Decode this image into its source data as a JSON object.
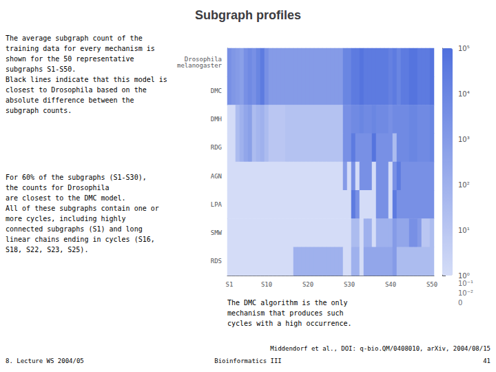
{
  "chart_data": {
    "type": "heatmap",
    "title": "Subgraph profiles",
    "categories": [
      "S1",
      null,
      null,
      null,
      null,
      null,
      null,
      null,
      null,
      "S10",
      null,
      null,
      null,
      null,
      null,
      null,
      null,
      null,
      null,
      "S20",
      null,
      null,
      null,
      null,
      null,
      null,
      null,
      null,
      null,
      "S30",
      null,
      null,
      null,
      null,
      null,
      null,
      null,
      null,
      null,
      "S40",
      null,
      null,
      null,
      null,
      null,
      null,
      null,
      null,
      null,
      "S50"
    ],
    "y_categories": [
      "Drosophila\nmelanogaster",
      "DMC",
      "DMH",
      "RDG",
      "AGN",
      "LPA",
      "SMW",
      "RDS"
    ],
    "values": [
      [
        3.5,
        3.2,
        3.0,
        2.8,
        3.5,
        3.8,
        3.5,
        4.0,
        4.5,
        3.5,
        3.0,
        3.0,
        3.0,
        3.0,
        3.0,
        3.0,
        3.0,
        3.0,
        3.0,
        3.0,
        3.0,
        3.0,
        3.0,
        3.0,
        3.0,
        3.0,
        3.0,
        3.0,
        4.0,
        4.0,
        4.5,
        4.5,
        4.8,
        4.5,
        4.5,
        4.5,
        4.5,
        4.5,
        4.5,
        4.2,
        4.5,
        4.0,
        4.5,
        4.5,
        4.8,
        4.8,
        4.5,
        4.5,
        4.5,
        4.8
      ],
      [
        3.5,
        3.2,
        3.0,
        2.8,
        3.5,
        3.8,
        3.5,
        4.0,
        4.5,
        3.5,
        3.0,
        3.0,
        3.0,
        3.0,
        3.0,
        3.0,
        3.0,
        3.0,
        3.0,
        3.0,
        3.0,
        3.0,
        3.0,
        3.0,
        3.0,
        3.0,
        3.0,
        3.0,
        4.0,
        4.0,
        4.5,
        4.5,
        4.8,
        4.5,
        4.5,
        4.5,
        4.5,
        4.5,
        4.5,
        4.2,
        4.5,
        4.0,
        4.5,
        4.5,
        4.8,
        4.8,
        4.5,
        4.5,
        4.5,
        4.8
      ],
      [
        0.0,
        0.0,
        1.5,
        2.0,
        2.5,
        2.8,
        1.5,
        1.8,
        2.0,
        1.5,
        1.0,
        1.0,
        1.0,
        1.0,
        1.2,
        1.2,
        1.2,
        1.2,
        1.2,
        1.2,
        1.2,
        1.2,
        1.2,
        1.2,
        1.2,
        1.2,
        1.2,
        1.2,
        3.5,
        3.5,
        3.8,
        3.8,
        4.0,
        3.8,
        3.8,
        4.0,
        3.8,
        3.8,
        3.8,
        3.5,
        3.8,
        3.8,
        3.8,
        3.8,
        4.0,
        4.0,
        3.8,
        3.8,
        3.8,
        4.0
      ],
      [
        0.0,
        0.0,
        1.5,
        2.0,
        2.5,
        2.8,
        1.5,
        1.8,
        2.0,
        1.5,
        1.0,
        1.0,
        1.0,
        1.0,
        1.2,
        1.2,
        1.2,
        1.2,
        1.2,
        1.2,
        1.2,
        1.2,
        1.2,
        1.2,
        1.2,
        1.2,
        1.2,
        1.2,
        3.5,
        3.5,
        4.5,
        3.5,
        3.5,
        3.5,
        3.5,
        4.8,
        3.5,
        3.5,
        3.5,
        3.5,
        1.5,
        3.8,
        3.8,
        3.8,
        4.0,
        4.0,
        3.8,
        3.8,
        3.8,
        4.0
      ],
      [
        0.0,
        0.0,
        0.0,
        0.0,
        0.0,
        0.0,
        0.0,
        0.0,
        0.0,
        0.0,
        0.0,
        0.0,
        0.0,
        0.0,
        0.0,
        0.0,
        0.0,
        0.0,
        0.0,
        0.0,
        0.0,
        0.0,
        0.0,
        0.0,
        0.0,
        0.0,
        0.0,
        0.0,
        3.0,
        0.0,
        3.5,
        0.0,
        3.5,
        3.5,
        3.5,
        0.0,
        3.5,
        3.5,
        3.5,
        0.0,
        3.5,
        4.5,
        3.5,
        3.5,
        3.5,
        3.5,
        3.5,
        3.5,
        3.5,
        3.5
      ],
      [
        0.0,
        0.0,
        0.0,
        0.0,
        0.0,
        0.0,
        0.0,
        0.0,
        0.0,
        0.0,
        0.0,
        0.0,
        0.0,
        0.0,
        0.0,
        0.0,
        0.0,
        0.0,
        0.0,
        0.0,
        0.0,
        0.0,
        0.0,
        0.0,
        0.0,
        0.0,
        0.0,
        0.0,
        0.0,
        0.0,
        4.5,
        3.5,
        0.0,
        0.0,
        0.0,
        0.0,
        3.5,
        3.5,
        3.5,
        0.0,
        4.5,
        3.5,
        3.5,
        3.5,
        3.5,
        3.5,
        3.5,
        3.5,
        3.5,
        3.5
      ],
      [
        0.0,
        0.0,
        0.0,
        0.0,
        0.0,
        0.0,
        0.0,
        0.0,
        0.0,
        0.0,
        0.0,
        0.0,
        0.0,
        0.0,
        0.0,
        0.0,
        0.0,
        0.0,
        0.0,
        0.0,
        0.0,
        0.0,
        0.0,
        0.0,
        0.0,
        0.0,
        0.0,
        0.0,
        0.0,
        0.0,
        1.5,
        1.5,
        0.0,
        2.0,
        2.0,
        0.0,
        2.0,
        2.0,
        2.0,
        2.0,
        3.0,
        2.5,
        2.5,
        2.5,
        3.5,
        3.5,
        3.0,
        1.0,
        1.0,
        1.5
      ],
      [
        0.0,
        0.0,
        0.0,
        0.0,
        0.0,
        0.0,
        0.0,
        0.0,
        0.0,
        0.0,
        0.0,
        0.0,
        0.0,
        0.0,
        0.0,
        0.0,
        2.0,
        2.0,
        2.0,
        2.0,
        2.0,
        2.0,
        2.0,
        2.0,
        2.0,
        2.0,
        2.0,
        2.0,
        0.0,
        0.0,
        2.0,
        2.0,
        0.0,
        2.5,
        2.5,
        2.5,
        2.5,
        2.5,
        2.5,
        2.5,
        3.0,
        1.5,
        1.5,
        1.5,
        1.5,
        1.5,
        1.5,
        1.5,
        1.5,
        1.5
      ]
    ],
    "color_range": [
      0,
      5
    ],
    "color_ticks": [
      {
        "value": 5,
        "label": "10⁵"
      },
      {
        "value": 4,
        "label": "10⁴"
      },
      {
        "value": 3,
        "label": "10³"
      },
      {
        "value": 2,
        "label": "10²"
      },
      {
        "value": 1,
        "label": "10¹"
      },
      {
        "value": 0,
        "label": "10⁰"
      }
    ],
    "color_extra_labels": [
      "10⁻¹",
      "10⁻²",
      "0"
    ],
    "annotations": [
      "The average subgraph count of the\ntraining data for every mechanism is\nshown for the 50 representative\nsubgraphs S1-S50.\nBlack lines indicate that this model is\nclosest to Drosophila based on the\nabsolute difference between the\nsubgraph counts.",
      "For 60% of the subgraphs (S1-S30),\nthe counts for Drosophila\nare closest to the DMC model.\nAll of these subgraphs contain one or\nmore cycles, including highly\nconnected subgraphs (S1) and long\nlinear chains ending in cycles (S16,\nS18, S22, S23, S25).",
      "The DMC algorithm is the only\nmechanism that produces such\ncycles with a high occurrence.",
      "8. Lecture WS 2004/05",
      "Bioinformatics III",
      "Middendorf et al., DOI: q-bio.QM/0408010, arXiv, 2004/08/15",
      "41"
    ]
  }
}
